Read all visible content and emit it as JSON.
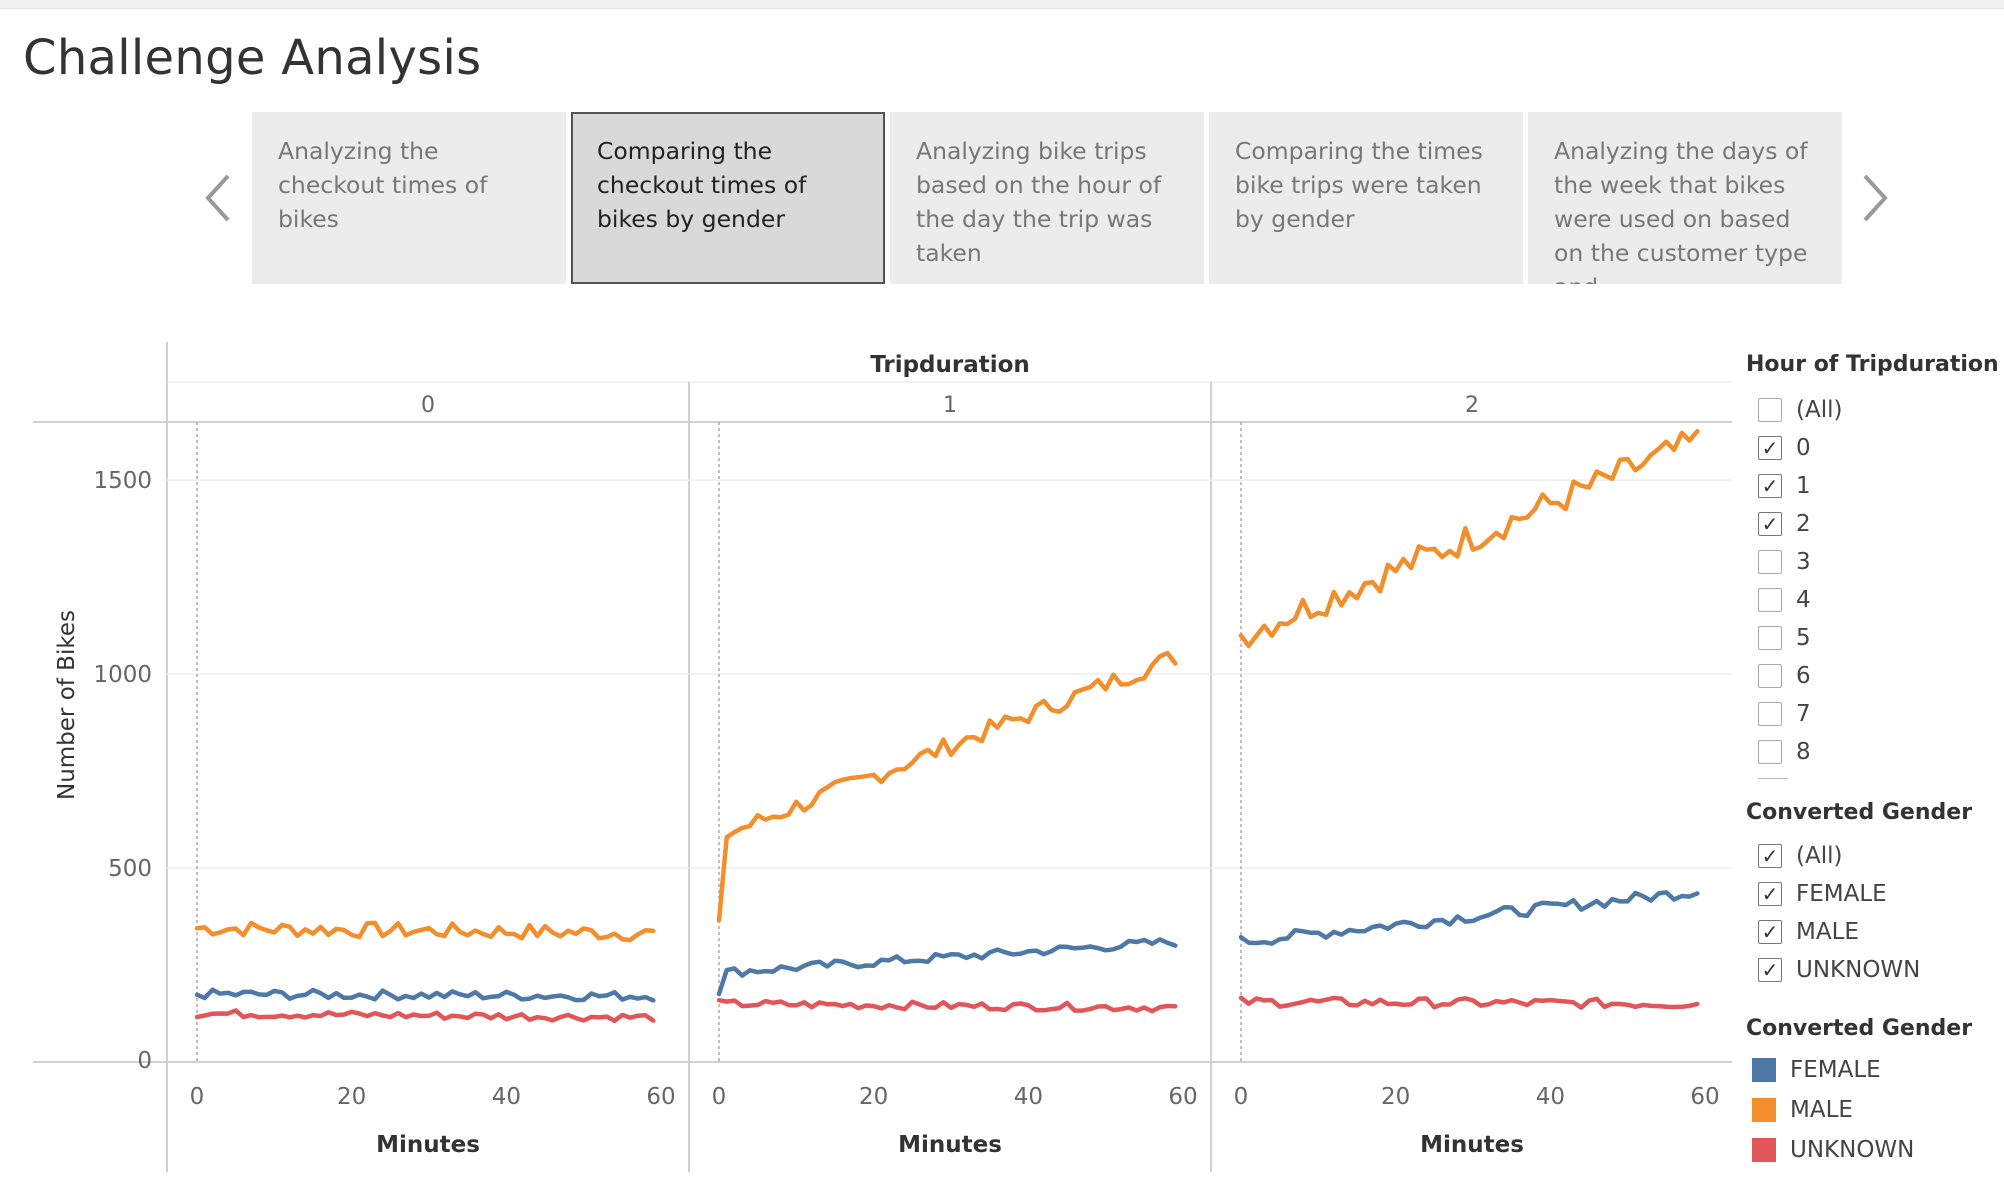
{
  "page": {
    "title": "Challenge Analysis"
  },
  "story_tabs": [
    {
      "label": "Analyzing the checkout times of bikes",
      "active": false
    },
    {
      "label": "Comparing the checkout times of bikes by gender",
      "active": true
    },
    {
      "label": "Analyzing bike trips based on the hour of the day the trip was taken",
      "active": false
    },
    {
      "label": "Comparing the times bike trips were taken by gender",
      "active": false
    },
    {
      "label": "Analyzing the days of the week that bikes were used on based on the customer type and",
      "active": false
    }
  ],
  "nav": {
    "prev_icon": "chevron-left-icon",
    "next_icon": "chevron-right-icon"
  },
  "filters": {
    "hour": {
      "title": "Hour of Tripduration",
      "options": [
        {
          "label": "(All)",
          "checked": false
        },
        {
          "label": "0",
          "checked": true
        },
        {
          "label": "1",
          "checked": true
        },
        {
          "label": "2",
          "checked": true
        },
        {
          "label": "3",
          "checked": false
        },
        {
          "label": "4",
          "checked": false
        },
        {
          "label": "5",
          "checked": false
        },
        {
          "label": "6",
          "checked": false
        },
        {
          "label": "7",
          "checked": false
        },
        {
          "label": "8",
          "checked": false
        }
      ]
    },
    "gender": {
      "title": "Converted Gender",
      "options": [
        {
          "label": "(All)",
          "checked": true
        },
        {
          "label": "FEMALE",
          "checked": true
        },
        {
          "label": "MALE",
          "checked": true
        },
        {
          "label": "UNKNOWN",
          "checked": true
        }
      ]
    }
  },
  "color_legend": {
    "title": "Converted Gender",
    "items": [
      {
        "label": "FEMALE",
        "color": "#4e79a7"
      },
      {
        "label": "MALE",
        "color": "#f28e2b"
      },
      {
        "label": "UNKNOWN",
        "color": "#e15759"
      }
    ]
  },
  "chart_data": {
    "type": "line",
    "column_header": "Tripduration",
    "panels": [
      "0",
      "1",
      "2"
    ],
    "xlabel": "Minutes",
    "ylabel": "Number of Bikes",
    "xlim": [
      0,
      60
    ],
    "ylim": [
      0,
      1650
    ],
    "x_ticks": [
      0,
      20,
      40,
      60
    ],
    "y_ticks": [
      0,
      500,
      1000,
      1500
    ],
    "grid": true,
    "legend": "right",
    "series": [
      {
        "name": "MALE",
        "color": "#f28e2b",
        "panel_ranges": [
          {
            "panel": "0",
            "start": 345,
            "end": 332,
            "noise": 20
          },
          {
            "panel": "1",
            "start": 580,
            "end": 1045,
            "first": 365,
            "noise": 25
          },
          {
            "panel": "2",
            "start": 1100,
            "end": 1600,
            "noise": 40
          }
        ]
      },
      {
        "name": "FEMALE",
        "color": "#4e79a7",
        "panel_ranges": [
          {
            "panel": "0",
            "start": 175,
            "end": 170,
            "noise": 12
          },
          {
            "panel": "1",
            "start": 230,
            "end": 310,
            "first": 175,
            "noise": 12
          },
          {
            "panel": "2",
            "start": 310,
            "end": 440,
            "noise": 15
          }
        ]
      },
      {
        "name": "UNKNOWN",
        "color": "#e15759",
        "panel_ranges": [
          {
            "panel": "0",
            "start": 125,
            "end": 115,
            "noise": 10
          },
          {
            "panel": "1",
            "start": 150,
            "end": 140,
            "noise": 10
          },
          {
            "panel": "2",
            "start": 155,
            "end": 150,
            "noise": 12
          }
        ]
      }
    ]
  }
}
